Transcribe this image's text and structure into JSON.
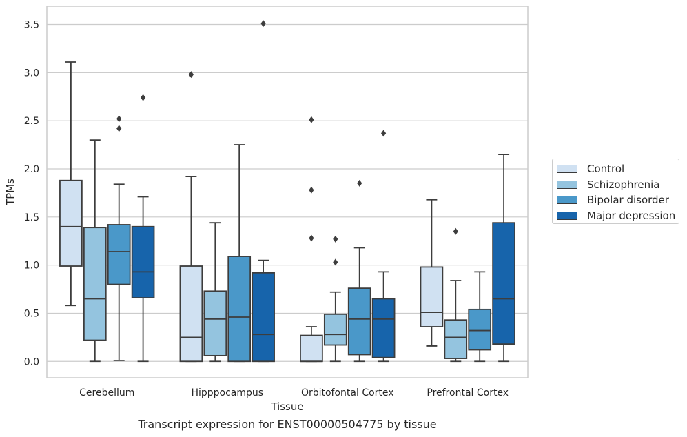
{
  "caption": "Transcript expression for ENST00000504775 by tissue",
  "chart_data": {
    "type": "box",
    "title": "",
    "xlabel": "Tissue",
    "ylabel": "TPMs",
    "ylim": [
      -0.17,
      3.69
    ],
    "yticks": [
      0.0,
      0.5,
      1.0,
      1.5,
      2.0,
      2.5,
      3.0,
      3.5
    ],
    "ytick_labels": [
      "0.0",
      "0.5",
      "1.0",
      "1.5",
      "2.0",
      "2.5",
      "3.0",
      "3.5"
    ],
    "grid": "horizontal",
    "legend_position": "right",
    "categories": [
      "Cerebellum",
      "Hipppocampus",
      "Orbitofontal Cortex",
      "Prefrontal Cortex"
    ],
    "series": [
      {
        "name": "Control",
        "color": "#d0e1f2",
        "boxes": [
          {
            "q1": 0.99,
            "median": 1.4,
            "q3": 1.88,
            "whisker_low": 0.58,
            "whisker_high": 3.11,
            "outliers": []
          },
          {
            "q1": 0.0,
            "median": 0.25,
            "q3": 0.99,
            "whisker_low": 0.0,
            "whisker_high": 1.92,
            "outliers": [
              2.98
            ]
          },
          {
            "q1": 0.0,
            "median": 0.0,
            "q3": 0.27,
            "whisker_low": 0.0,
            "whisker_high": 0.36,
            "outliers": [
              1.28,
              1.78,
              2.51
            ]
          },
          {
            "q1": 0.36,
            "median": 0.51,
            "q3": 0.98,
            "whisker_low": 0.16,
            "whisker_high": 1.68,
            "outliers": []
          }
        ]
      },
      {
        "name": "Schizophrenia",
        "color": "#94c4df",
        "boxes": [
          {
            "q1": 0.22,
            "median": 0.65,
            "q3": 1.39,
            "whisker_low": 0.0,
            "whisker_high": 2.3,
            "outliers": []
          },
          {
            "q1": 0.06,
            "median": 0.44,
            "q3": 0.73,
            "whisker_low": 0.0,
            "whisker_high": 1.44,
            "outliers": []
          },
          {
            "q1": 0.17,
            "median": 0.28,
            "q3": 0.49,
            "whisker_low": 0.0,
            "whisker_high": 0.72,
            "outliers": [
              1.03,
              1.27
            ]
          },
          {
            "q1": 0.03,
            "median": 0.25,
            "q3": 0.43,
            "whisker_low": 0.0,
            "whisker_high": 0.84,
            "outliers": [
              1.35
            ]
          }
        ]
      },
      {
        "name": "Bipolar disorder",
        "color": "#4a98c9",
        "boxes": [
          {
            "q1": 0.8,
            "median": 1.14,
            "q3": 1.42,
            "whisker_low": 0.01,
            "whisker_high": 1.84,
            "outliers": [
              2.42,
              2.52
            ]
          },
          {
            "q1": 0.0,
            "median": 0.46,
            "q3": 1.09,
            "whisker_low": 0.0,
            "whisker_high": 2.25,
            "outliers": []
          },
          {
            "q1": 0.07,
            "median": 0.44,
            "q3": 0.76,
            "whisker_low": 0.0,
            "whisker_high": 1.18,
            "outliers": [
              1.85
            ]
          },
          {
            "q1": 0.12,
            "median": 0.32,
            "q3": 0.54,
            "whisker_low": 0.0,
            "whisker_high": 0.93,
            "outliers": []
          }
        ]
      },
      {
        "name": "Major depression",
        "color": "#1764ab",
        "boxes": [
          {
            "q1": 0.66,
            "median": 0.93,
            "q3": 1.4,
            "whisker_low": 0.0,
            "whisker_high": 1.71,
            "outliers": [
              2.74
            ]
          },
          {
            "q1": 0.0,
            "median": 0.28,
            "q3": 0.92,
            "whisker_low": 0.0,
            "whisker_high": 1.05,
            "outliers": [
              3.51
            ]
          },
          {
            "q1": 0.04,
            "median": 0.44,
            "q3": 0.65,
            "whisker_low": 0.0,
            "whisker_high": 0.93,
            "outliers": [
              2.37
            ]
          },
          {
            "q1": 0.18,
            "median": 0.65,
            "q3": 1.44,
            "whisker_low": 0.0,
            "whisker_high": 2.15,
            "outliers": []
          }
        ]
      }
    ]
  }
}
